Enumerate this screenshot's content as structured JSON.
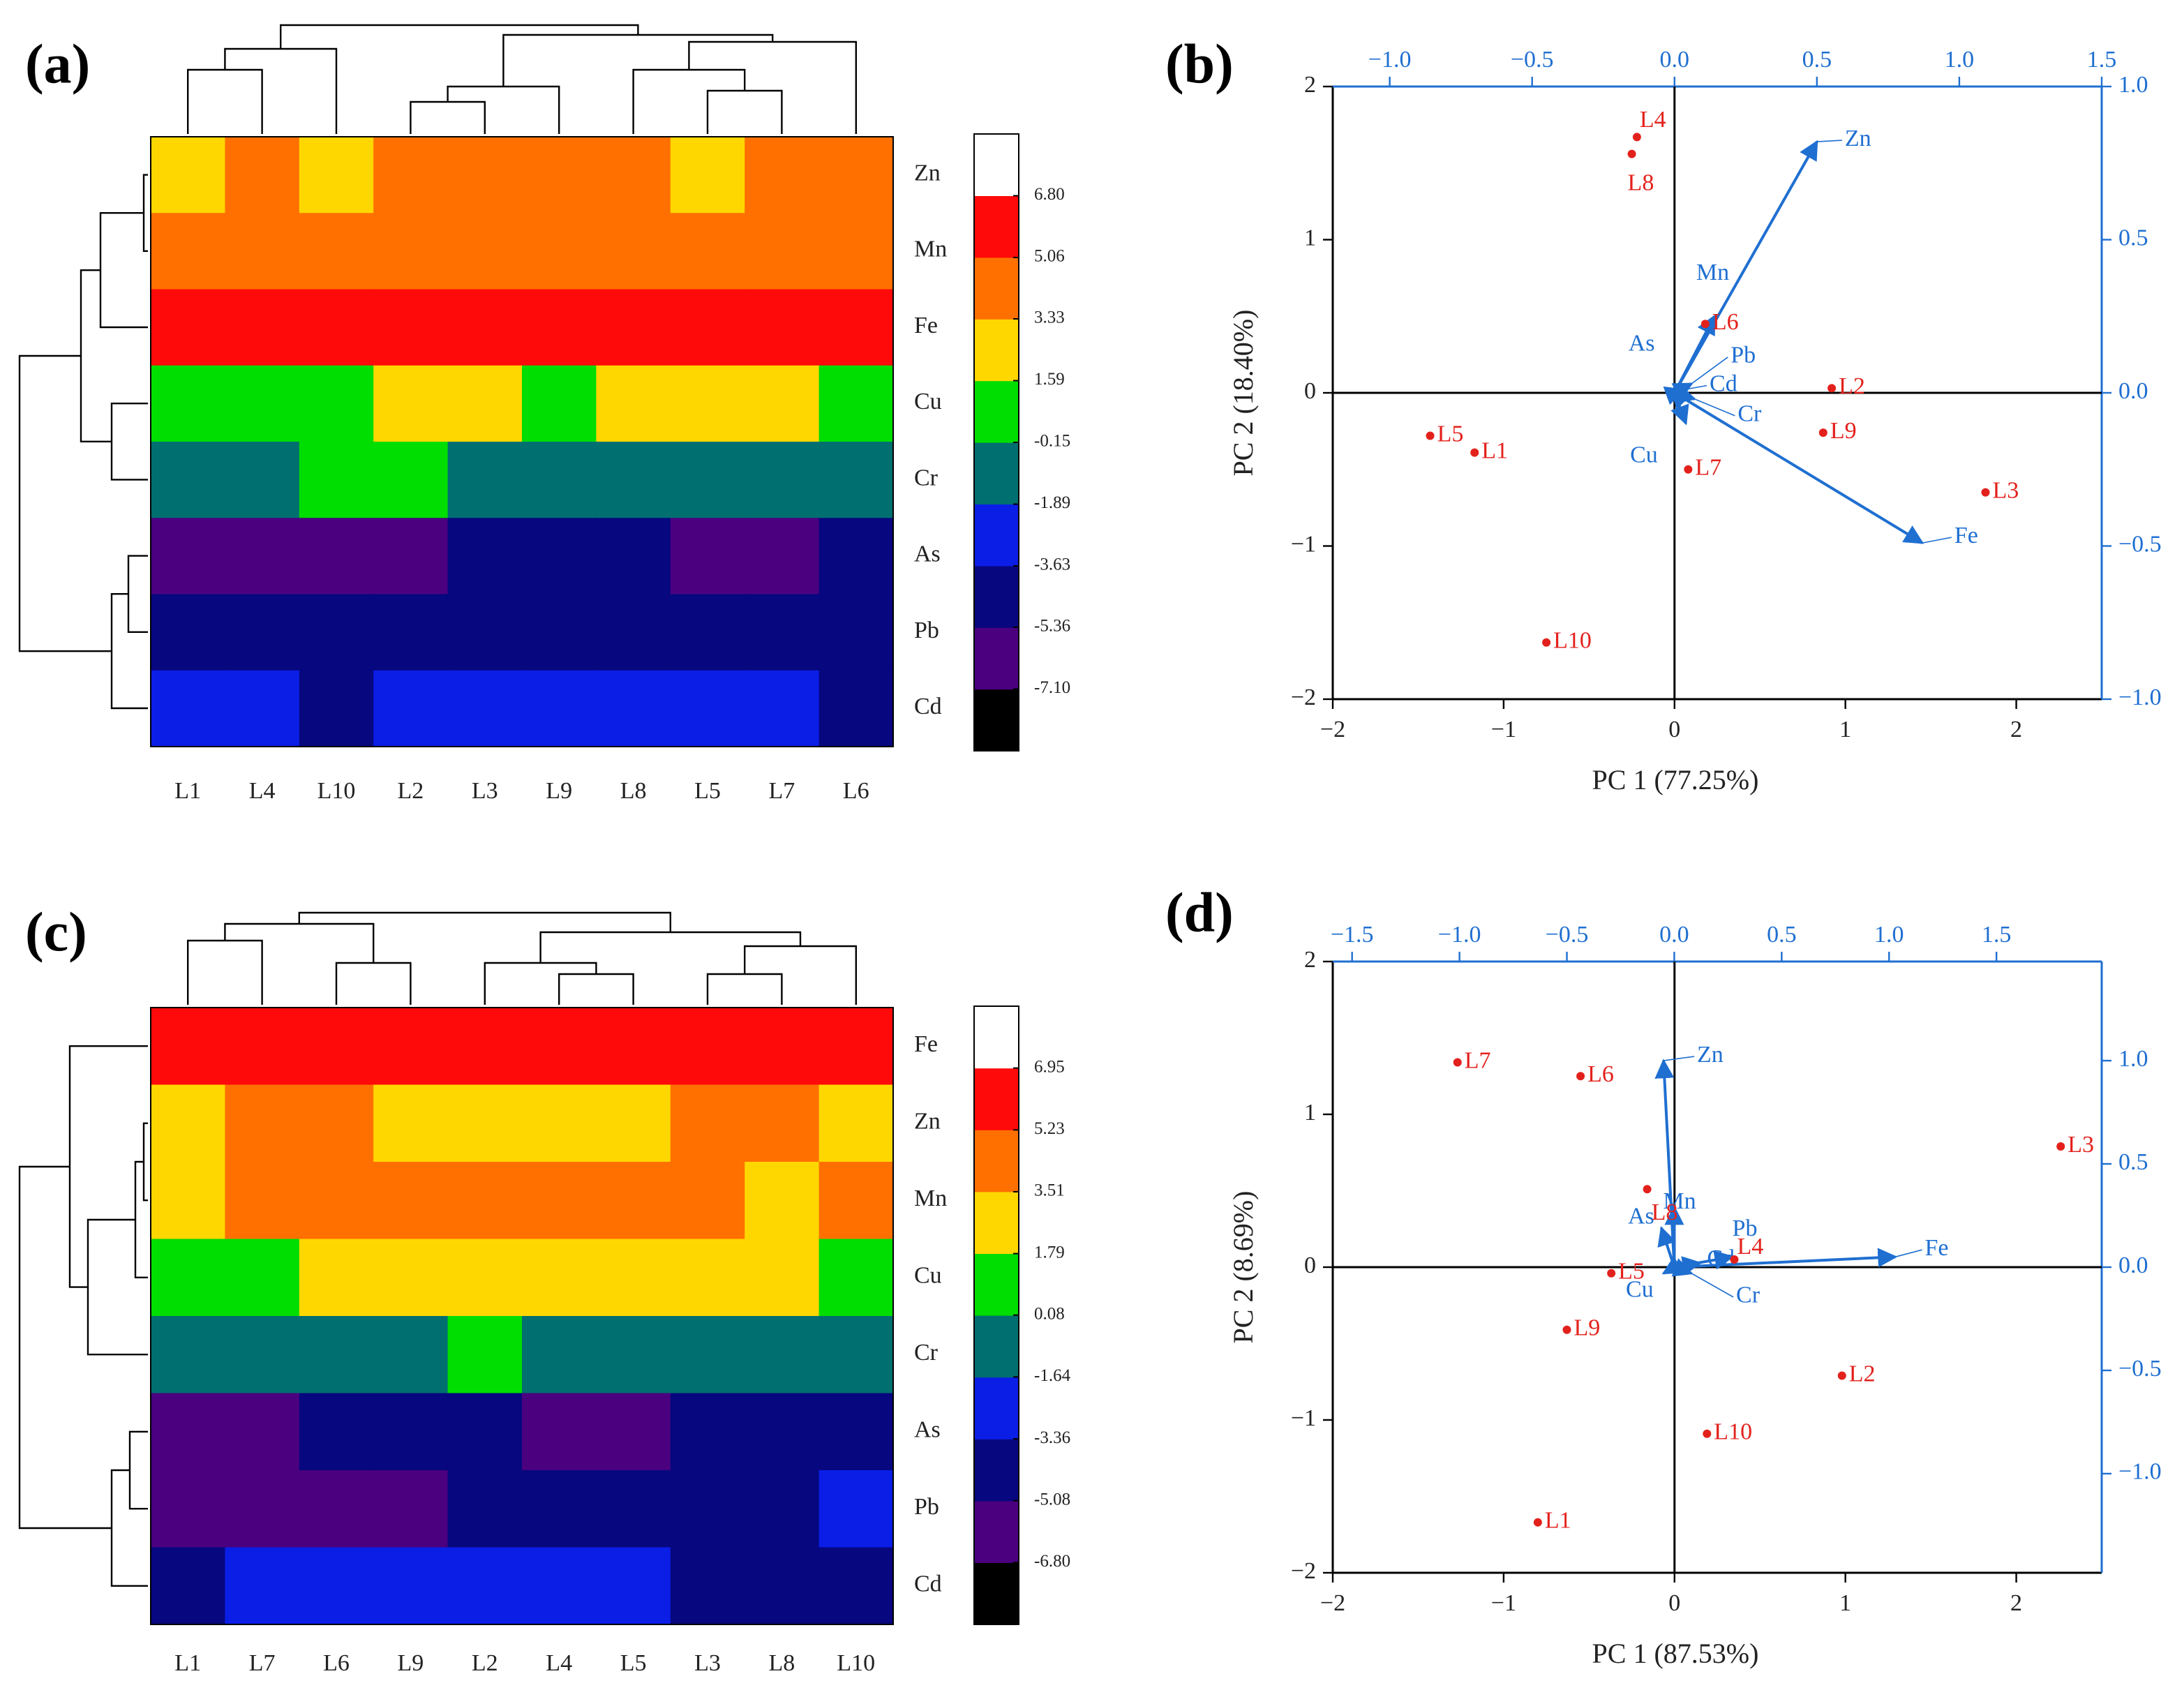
{
  "chart_data": [
    {
      "type": "heatmap",
      "panel": "(a)",
      "categories": [
        "L1",
        "L4",
        "L10",
        "L2",
        "L3",
        "L9",
        "L8",
        "L5",
        "L7",
        "L6"
      ],
      "rows": [
        "Zn",
        "Mn",
        "Fe",
        "Cu",
        "Cr",
        "As",
        "Pb",
        "Cd"
      ],
      "values": [
        [
          2.46,
          4.2,
          2.46,
          4.2,
          4.2,
          4.2,
          4.2,
          2.46,
          4.2,
          4.2
        ],
        [
          4.2,
          4.2,
          4.2,
          4.2,
          4.2,
          4.2,
          4.2,
          4.2,
          4.2,
          4.2
        ],
        [
          5.93,
          5.93,
          5.93,
          5.93,
          5.93,
          5.93,
          5.93,
          5.93,
          5.93,
          5.93
        ],
        [
          0.72,
          0.72,
          0.72,
          2.46,
          2.46,
          0.72,
          2.46,
          2.46,
          2.46,
          0.72
        ],
        [
          -1.02,
          -1.02,
          0.72,
          0.72,
          -1.02,
          -1.02,
          -1.02,
          -1.02,
          -1.02,
          -1.02
        ],
        [
          -6.23,
          -6.23,
          -6.23,
          -6.23,
          -4.5,
          -4.5,
          -4.5,
          -6.23,
          -6.23,
          -4.5
        ],
        [
          -4.5,
          -4.5,
          -4.5,
          -4.5,
          -4.5,
          -4.5,
          -4.5,
          -4.5,
          -4.5,
          -4.5
        ],
        [
          -2.76,
          -2.76,
          -4.5,
          -2.76,
          -2.76,
          -2.76,
          -2.76,
          -2.76,
          -2.76,
          -4.5
        ]
      ],
      "colorbar": {
        "lim": [
          -8.84,
          8.54
        ],
        "ticks": [
          {
            "value": 6.8,
            "label": "6.80"
          },
          5.06,
          3.33,
          1.59,
          -0.15,
          -1.89,
          -3.63,
          -5.36,
          {
            "value": -7.1,
            "label": "-7.10"
          }
        ],
        "colors": [
          "#000000",
          "#4a007f",
          "#07077f",
          "#0a1ee6",
          "#006f70",
          "#00dd00",
          "#ffd700",
          "#ff7000",
          "#ff0a0a",
          "#ffffff"
        ]
      }
    },
    {
      "type": "biplot",
      "panel": "(b)",
      "x_label": "PC 1 (77.25%)",
      "y_label": "PC 2 (18.40%)",
      "xlim": [
        -2,
        2.5
      ],
      "ylim": [
        -2,
        2
      ],
      "xticks": [
        {
          "value": -2,
          "label": "−2"
        },
        {
          "value": -1,
          "label": "−1"
        },
        0,
        1,
        2
      ],
      "yticks": [
        {
          "value": -2,
          "label": "−2"
        },
        {
          "value": -1,
          "label": "−1"
        },
        0,
        1,
        2
      ],
      "x2lim": [
        -1.2,
        1.5
      ],
      "y2lim": [
        -1,
        1
      ],
      "x2ticks": [
        {
          "value": -1,
          "label": "−1.0"
        },
        {
          "value": -0.5,
          "label": "−0.5"
        },
        {
          "value": 0,
          "label": "0.0"
        },
        0.5,
        {
          "value": 1,
          "label": "1.0"
        },
        1.5
      ],
      "y2ticks": [
        {
          "value": -1,
          "label": "−1.0"
        },
        {
          "value": -0.5,
          "label": "−0.5"
        },
        {
          "value": 0,
          "label": "0.0"
        },
        0.5,
        {
          "value": 1,
          "label": "1.0"
        }
      ],
      "scores": {
        "color": "#e3211c",
        "labels": [
          "L1",
          "L2",
          "L3",
          "L4",
          "L5",
          "L6",
          "L7",
          "L8",
          "L9",
          "L10"
        ],
        "x": [
          -1.17,
          0.92,
          1.82,
          -0.22,
          -1.43,
          0.18,
          0.08,
          -0.25,
          0.87,
          -0.75
        ],
        "y": [
          -0.39,
          0.03,
          -0.65,
          1.67,
          -0.28,
          0.45,
          -0.5,
          1.56,
          -0.26,
          -1.63
        ]
      },
      "loadings": {
        "color": "#1f6fd1",
        "labels": [
          "Zn",
          "Mn",
          "Fe",
          "Cu",
          "Cr",
          "As",
          "Pb",
          "Cd"
        ],
        "x": [
          0.5,
          0.14,
          0.87,
          0.04,
          0.07,
          -0.01,
          0.06,
          0.03
        ],
        "y": [
          0.82,
          0.25,
          -0.49,
          -0.1,
          -0.02,
          0.01,
          0.03,
          0.01
        ]
      }
    },
    {
      "type": "heatmap",
      "panel": "(c)",
      "categories": [
        "L1",
        "L7",
        "L6",
        "L9",
        "L2",
        "L4",
        "L5",
        "L3",
        "L8",
        "L10"
      ],
      "rows": [
        "Fe",
        "Zn",
        "Mn",
        "Cu",
        "Cr",
        "As",
        "Pb",
        "Cd"
      ],
      "values": [
        [
          6.09,
          6.09,
          6.09,
          6.09,
          6.09,
          6.09,
          6.09,
          6.09,
          6.09,
          6.09
        ],
        [
          2.65,
          4.37,
          4.37,
          2.65,
          2.65,
          2.65,
          2.65,
          4.37,
          4.37,
          2.65
        ],
        [
          2.65,
          4.37,
          4.37,
          4.37,
          4.37,
          4.37,
          4.37,
          4.37,
          2.65,
          4.37
        ],
        [
          0.94,
          0.94,
          2.65,
          2.65,
          2.65,
          2.65,
          2.65,
          2.65,
          2.65,
          0.94
        ],
        [
          -0.78,
          -0.78,
          -0.78,
          -0.78,
          0.94,
          -0.78,
          -0.78,
          -0.78,
          -0.78,
          -0.78
        ],
        [
          -5.94,
          -5.94,
          -4.22,
          -4.22,
          -4.22,
          -5.94,
          -5.94,
          -4.22,
          -4.22,
          -4.22
        ],
        [
          -5.94,
          -5.94,
          -5.94,
          -5.94,
          -4.22,
          -4.22,
          -4.22,
          -4.22,
          -4.22,
          -2.5
        ],
        [
          -4.22,
          -2.5,
          -2.5,
          -2.5,
          -2.5,
          -2.5,
          -2.5,
          -4.22,
          -4.22,
          -4.22
        ]
      ],
      "colorbar": {
        "lim": [
          -8.52,
          8.67
        ],
        "ticks": [
          6.95,
          5.23,
          3.51,
          1.79,
          0.08,
          -1.64,
          -3.36,
          -5.08,
          {
            "value": -6.8,
            "label": "-6.80"
          }
        ],
        "colors": [
          "#000000",
          "#4a007f",
          "#07077f",
          "#0a1ee6",
          "#006f70",
          "#00dd00",
          "#ffd700",
          "#ff7000",
          "#ff0a0a",
          "#ffffff"
        ]
      }
    },
    {
      "type": "biplot",
      "panel": "(d)",
      "x_label": "PC 1 (87.53%)",
      "y_label": "PC 2 (8.69%)",
      "xlim": [
        -2,
        2.5
      ],
      "ylim": [
        -2,
        2
      ],
      "xticks": [
        {
          "value": -2,
          "label": "−2"
        },
        {
          "value": -1,
          "label": "−1"
        },
        0,
        1,
        2
      ],
      "yticks": [
        {
          "value": -2,
          "label": "−2"
        },
        {
          "value": -1,
          "label": "−1"
        },
        0,
        1,
        2
      ],
      "x2lim": [
        -1.59,
        1.99
      ],
      "y2lim": [
        -1.48,
        1.48
      ],
      "x2ticks": [
        {
          "value": -1.5,
          "label": "−1.5"
        },
        {
          "value": -1,
          "label": "−1.0"
        },
        {
          "value": -0.5,
          "label": "−0.5"
        },
        {
          "value": 0,
          "label": "0.0"
        },
        0.5,
        {
          "value": 1,
          "label": "1.0"
        },
        1.5
      ],
      "y2ticks": [
        {
          "value": -1,
          "label": "−1.0"
        },
        {
          "value": -0.5,
          "label": "−0.5"
        },
        {
          "value": 0,
          "label": "0.0"
        },
        0.5,
        {
          "value": 1,
          "label": "1.0"
        }
      ],
      "scores": {
        "color": "#e3211c",
        "labels": [
          "L1",
          "L2",
          "L3",
          "L4",
          "L5",
          "L6",
          "L7",
          "L8",
          "L9",
          "L10"
        ],
        "x": [
          -0.8,
          0.98,
          2.26,
          0.35,
          -0.37,
          -0.55,
          -1.27,
          -0.16,
          -0.63,
          0.19
        ],
        "y": [
          -1.67,
          -0.71,
          0.79,
          0.05,
          -0.04,
          1.25,
          1.34,
          0.51,
          -0.41,
          -1.09
        ]
      },
      "loadings": {
        "color": "#1f6fd1",
        "labels": [
          "Zn",
          "Mn",
          "Fe",
          "Cu",
          "Cr",
          "As",
          "Pb",
          "Cd"
        ],
        "x": [
          -0.05,
          0.0,
          1.03,
          -0.05,
          0.08,
          -0.06,
          0.27,
          0.12
        ],
        "y": [
          1.0,
          0.29,
          0.05,
          -0.03,
          -0.03,
          0.19,
          0.05,
          0.02
        ]
      }
    }
  ]
}
